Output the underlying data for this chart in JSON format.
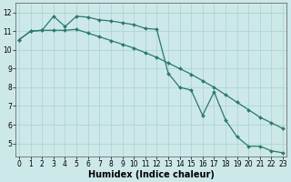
{
  "xlabel": "Humidex (Indice chaleur)",
  "background_color": "#cde8e8",
  "grid_color": "#aad0d0",
  "line_color": "#2a7a6a",
  "series1_x": [
    0,
    1,
    2,
    3,
    4,
    5,
    6,
    7,
    8,
    9,
    10,
    11,
    12,
    13,
    14,
    15,
    16,
    17,
    18,
    19,
    20,
    21,
    22,
    23
  ],
  "series1_y": [
    10.55,
    11.0,
    11.05,
    11.8,
    11.25,
    11.8,
    11.75,
    11.6,
    11.55,
    11.45,
    11.35,
    11.15,
    11.1,
    8.75,
    8.0,
    7.85,
    6.5,
    7.75,
    6.25,
    5.35,
    4.85,
    4.85,
    4.6,
    4.5
  ],
  "series2_x": [
    0,
    1,
    2,
    3,
    4,
    5,
    6,
    7,
    8,
    9,
    10,
    11,
    12,
    13,
    14,
    15,
    16,
    17,
    18,
    19,
    20,
    21,
    22,
    23
  ],
  "series2_y": [
    10.55,
    11.0,
    11.05,
    11.05,
    11.05,
    11.1,
    10.9,
    10.7,
    10.5,
    10.3,
    10.1,
    9.85,
    9.6,
    9.3,
    9.0,
    8.7,
    8.35,
    8.0,
    7.6,
    7.2,
    6.8,
    6.4,
    6.1,
    5.8
  ],
  "ylim": [
    4.3,
    12.5
  ],
  "yticks": [
    5,
    6,
    7,
    8,
    9,
    10,
    11,
    12
  ],
  "xlim": [
    -0.3,
    23.3
  ],
  "xticks": [
    0,
    1,
    2,
    3,
    4,
    5,
    6,
    7,
    8,
    9,
    10,
    11,
    12,
    13,
    14,
    15,
    16,
    17,
    18,
    19,
    20,
    21,
    22,
    23
  ],
  "tick_fontsize": 5.5,
  "label_fontsize": 7,
  "linewidth": 0.9,
  "markersize": 2.0
}
